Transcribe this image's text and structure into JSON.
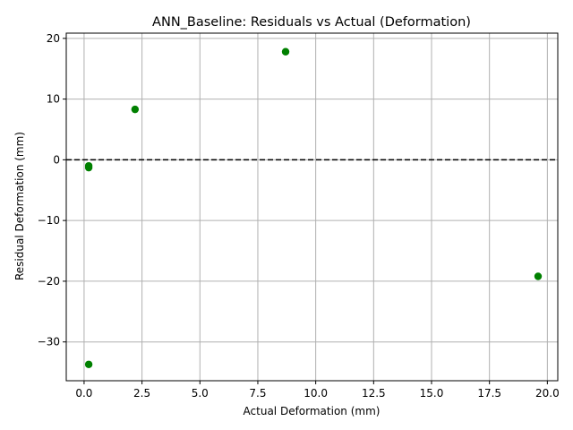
{
  "chart_data": {
    "type": "scatter",
    "title": "ANN_Baseline: Residuals vs Actual (Deformation)",
    "xlabel": "Actual Deformation (mm)",
    "ylabel": "Residual Deformation (mm)",
    "xlim": [
      -0.77,
      20.45
    ],
    "ylim": [
      -36.39,
      20.86
    ],
    "xticks": [
      0.0,
      2.5,
      5.0,
      7.5,
      10.0,
      12.5,
      15.0,
      17.5,
      20.0
    ],
    "xtick_labels": [
      "0.0",
      "2.5",
      "5.0",
      "7.5",
      "10.0",
      "12.5",
      "15.0",
      "17.5",
      "20.0"
    ],
    "yticks": [
      -30,
      -20,
      -10,
      0,
      10,
      20
    ],
    "ytick_labels": [
      "−30",
      "−20",
      "−10",
      "0",
      "10",
      "20"
    ],
    "grid": true,
    "reference_line": {
      "y": 0,
      "style": "dashed",
      "color": "#000000"
    },
    "point_color": "#008000",
    "points": [
      {
        "x": 0.2,
        "y": -1.0
      },
      {
        "x": 0.2,
        "y": -1.3
      },
      {
        "x": 2.2,
        "y": 8.3
      },
      {
        "x": 8.7,
        "y": 17.8
      },
      {
        "x": 0.2,
        "y": -33.7
      },
      {
        "x": 19.6,
        "y": -19.2
      }
    ]
  }
}
